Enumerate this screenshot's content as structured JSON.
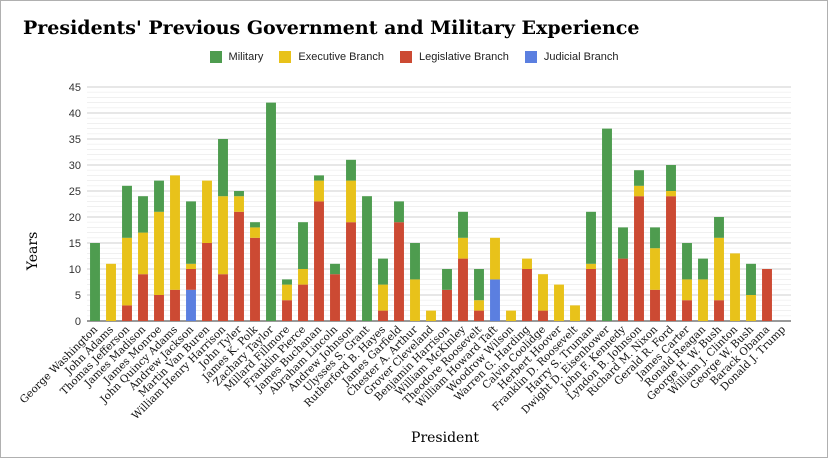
{
  "chart_data": {
    "type": "bar",
    "stacked": true,
    "title": "Presidents' Previous Government and Military Experience",
    "xlabel": "President",
    "ylabel": "Years",
    "ylim": [
      0,
      45
    ],
    "yticks": [
      0,
      5,
      10,
      15,
      20,
      25,
      30,
      35,
      40,
      45
    ],
    "grid": true,
    "legend_position": "top",
    "categories": [
      "George Washington",
      "John Adams",
      "Thomas Jefferson",
      "James Madison",
      "James Monroe",
      "John Quincy Adams",
      "Andrew Jackson",
      "Martin Van Buren",
      "William Henry Harrison",
      "John Tyler",
      "James K. Polk",
      "Zachary Taylor",
      "Millard Fillmore",
      "Franklin Pierce",
      "James Buchanan",
      "Abraham Lincoln",
      "Andrew Johnson",
      "Ulysses S. Grant",
      "Rutherford B. Hayes",
      "James Garfield",
      "Chester A. Arthur",
      "Grover Cleveland",
      "Benjamin Harrison",
      "William McKinley",
      "Theodore Roosevelt",
      "William Howard Taft",
      "Woodrow Wilson",
      "Warren G. Harding",
      "Calvin Coolidge",
      "Herbert Hoover",
      "Franklin D. Roosevelt",
      "Harry S. Truman",
      "Dwight D. Eisenhower",
      "John F. Kennedy",
      "Lyndon B. Johnson",
      "Richard M. Nixon",
      "Gerald R. Ford",
      "James Carter",
      "Ronald Reagan",
      "George H. W. Bush",
      "William J. Clinton",
      "George W. Bush",
      "Barack Obama",
      "Donald J. Trump"
    ],
    "series": [
      {
        "name": "Judicial Branch",
        "color": "#5b7fe0",
        "values": [
          0,
          0,
          0,
          0,
          0,
          0,
          6,
          0,
          0,
          0,
          0,
          0,
          0,
          0,
          0,
          0,
          0,
          0,
          0,
          0,
          0,
          0,
          0,
          0,
          0,
          8,
          0,
          0,
          0,
          0,
          0,
          0,
          0,
          0,
          0,
          0,
          0,
          0,
          0,
          0,
          0,
          0,
          0,
          0
        ]
      },
      {
        "name": "Legislative Branch",
        "color": "#cc4a33",
        "values": [
          0,
          0,
          3,
          9,
          5,
          6,
          4,
          15,
          9,
          21,
          16,
          0,
          4,
          7,
          23,
          9,
          19,
          0,
          2,
          19,
          0,
          0,
          6,
          12,
          2,
          0,
          0,
          10,
          2,
          0,
          0,
          10,
          0,
          12,
          24,
          6,
          24,
          4,
          0,
          4,
          0,
          0,
          10,
          0
        ]
      },
      {
        "name": "Executive Branch",
        "color": "#e8c21a",
        "values": [
          0,
          11,
          13,
          8,
          16,
          22,
          1,
          12,
          15,
          3,
          2,
          0,
          3,
          3,
          4,
          0,
          8,
          0,
          5,
          0,
          8,
          2,
          0,
          4,
          2,
          8,
          2,
          2,
          7,
          7,
          3,
          1,
          0,
          0,
          2,
          8,
          1,
          4,
          8,
          12,
          13,
          5,
          0,
          0
        ]
      },
      {
        "name": "Military",
        "color": "#4e9c4f",
        "values": [
          15,
          0,
          10,
          7,
          6,
          0,
          12,
          0,
          11,
          1,
          1,
          42,
          1,
          9,
          1,
          2,
          4,
          24,
          5,
          4,
          7,
          0,
          4,
          5,
          6,
          0,
          0,
          0,
          0,
          0,
          0,
          10,
          37,
          6,
          3,
          4,
          5,
          7,
          4,
          4,
          0,
          6,
          0,
          0
        ]
      }
    ],
    "legend": [
      "Military",
      "Executive Branch",
      "Legislative Branch",
      "Judicial Branch"
    ]
  },
  "legend_items": [
    {
      "label": "Military",
      "color": "#4e9c4f"
    },
    {
      "label": "Executive Branch",
      "color": "#e8c21a"
    },
    {
      "label": "Legislative Branch",
      "color": "#cc4a33"
    },
    {
      "label": "Judicial Branch",
      "color": "#5b7fe0"
    }
  ]
}
